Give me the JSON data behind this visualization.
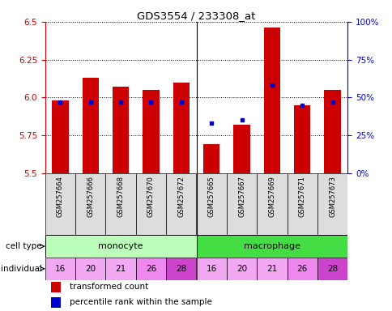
{
  "title": "GDS3554 / 233308_at",
  "samples": [
    "GSM257664",
    "GSM257666",
    "GSM257668",
    "GSM257670",
    "GSM257672",
    "GSM257665",
    "GSM257667",
    "GSM257669",
    "GSM257671",
    "GSM257673"
  ],
  "red_values": [
    5.98,
    6.13,
    6.07,
    6.05,
    6.1,
    5.69,
    5.82,
    6.46,
    5.95,
    6.05
  ],
  "blue_percentiles": [
    47,
    47,
    47,
    47,
    47,
    33,
    35,
    58,
    45,
    47
  ],
  "ymin": 5.5,
  "ymax": 6.5,
  "yticks": [
    5.5,
    5.75,
    6.0,
    6.25,
    6.5
  ],
  "right_yticks": [
    0,
    25,
    50,
    75,
    100
  ],
  "right_yticklabels": [
    "0%",
    "25%",
    "50%",
    "75%",
    "100%"
  ],
  "individuals": [
    16,
    20,
    21,
    26,
    28,
    16,
    20,
    21,
    26,
    28
  ],
  "ind_colors": [
    "#f2a8f2",
    "#f2a8f2",
    "#f2a8f2",
    "#ee88ee",
    "#cc44cc",
    "#f2a8f2",
    "#f2a8f2",
    "#f2a8f2",
    "#ee88ee",
    "#cc44cc"
  ],
  "monocyte_color": "#bbffbb",
  "macrophage_color": "#44dd44",
  "bar_color": "#cc0000",
  "dot_color": "#0000cc",
  "tick_color_left": "#cc0000",
  "tick_color_right": "#0000cc",
  "legend_red": "transformed count",
  "legend_blue": "percentile rank within the sample"
}
